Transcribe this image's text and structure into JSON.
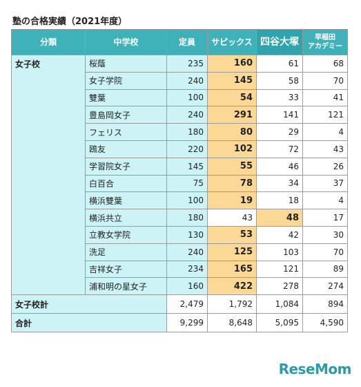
{
  "title": "塾の合格実績（2021年度）",
  "table": {
    "headers": [
      [
        "分類"
      ],
      [
        "中学校"
      ],
      [
        "定員"
      ],
      [
        "サピックス"
      ],
      [
        "四谷大塚"
      ],
      [
        "早稲田",
        "アカデミー"
      ]
    ],
    "groups": [
      {
        "category": "女子校",
        "rows": [
          [
            "桜蔭",
            235,
            160,
            61,
            68
          ],
          [
            "女子学院",
            240,
            145,
            58,
            70
          ],
          [
            "雙葉",
            100,
            54,
            33,
            41
          ],
          [
            "豊島岡女子",
            240,
            291,
            141,
            121
          ],
          [
            "フェリス",
            180,
            80,
            29,
            4
          ],
          [
            "鴎友",
            220,
            102,
            72,
            43
          ],
          [
            "学習院女子",
            145,
            55,
            46,
            26
          ],
          [
            "白百合",
            75,
            78,
            34,
            37
          ],
          [
            "横浜雙葉",
            100,
            19,
            18,
            4
          ],
          [
            "横浜共立",
            180,
            43,
            48,
            17
          ],
          [
            "立教女学院",
            130,
            53,
            42,
            30
          ],
          [
            "洗足",
            240,
            125,
            103,
            70
          ],
          [
            "吉祥女子",
            234,
            165,
            121,
            89
          ],
          [
            "浦和明の星女子",
            160,
            422,
            278,
            274
          ]
        ]
      }
    ],
    "totals": [
      {
        "label": "女子校計",
        "values": [
          "2,479",
          "1,792",
          "1,084",
          "894"
        ]
      },
      {
        "label": "合計",
        "values": [
          "9,299",
          "8,648",
          "5,095",
          "4,590"
        ]
      }
    ]
  },
  "logo": "ReseMom"
}
